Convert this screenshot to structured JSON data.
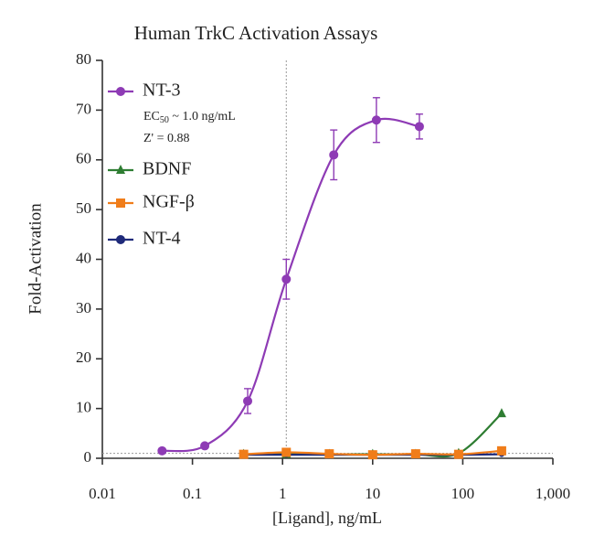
{
  "chart_data": {
    "type": "scatter",
    "title": "Human TrkC Activation Assays",
    "x_label": "[Ligand], ng/mL",
    "y_label": "Fold-Activation",
    "x_scale": "log",
    "xlim": [
      0.01,
      1000
    ],
    "ylim": [
      0,
      80
    ],
    "xticks": [
      0.01,
      0.1,
      1,
      10,
      100,
      {
        "value": 1000,
        "label": "1,000"
      }
    ],
    "yticks": [
      0,
      10,
      20,
      30,
      40,
      50,
      60,
      70,
      80
    ],
    "reference_lines": {
      "x": 1.1,
      "y": 1
    },
    "legend": "upper left",
    "annotations": [
      {
        "text": "EC",
        "sub": "50",
        "rest": " ~ 1.0 ng/mL"
      },
      {
        "text": "Z' = 0.88"
      }
    ],
    "series": [
      {
        "name": "NT-3",
        "color": "#8e3bb5",
        "marker": "circle",
        "x": [
          0.046,
          0.137,
          0.41,
          1.1,
          3.7,
          11,
          33
        ],
        "values": [
          1.5,
          2.5,
          11.5,
          36,
          61,
          68,
          66.7
        ],
        "errors": [
          0.3,
          0.3,
          2.5,
          4,
          5,
          4.5,
          2.5
        ]
      },
      {
        "name": "BDNF",
        "color": "#2e7d32",
        "marker": "triangle",
        "x": [
          0.37,
          1.1,
          3.3,
          10,
          30,
          90,
          270
        ],
        "values": [
          0.8,
          0.8,
          0.8,
          0.8,
          0.8,
          1,
          9
        ]
      },
      {
        "name": "NT-4",
        "color": "#1f2a7a",
        "marker": "circle",
        "x": [
          0.37,
          1.1,
          3.3,
          10,
          30,
          90,
          270
        ],
        "values": [
          0.7,
          0.7,
          0.7,
          0.7,
          0.7,
          0.7,
          0.8
        ]
      },
      {
        "name": "NGF-β",
        "color": "#f07d1a",
        "marker": "square",
        "x": [
          0.37,
          1.1,
          3.3,
          10,
          30,
          90,
          270
        ],
        "values": [
          0.8,
          1.2,
          0.9,
          0.7,
          0.9,
          0.8,
          1.5
        ]
      }
    ]
  }
}
